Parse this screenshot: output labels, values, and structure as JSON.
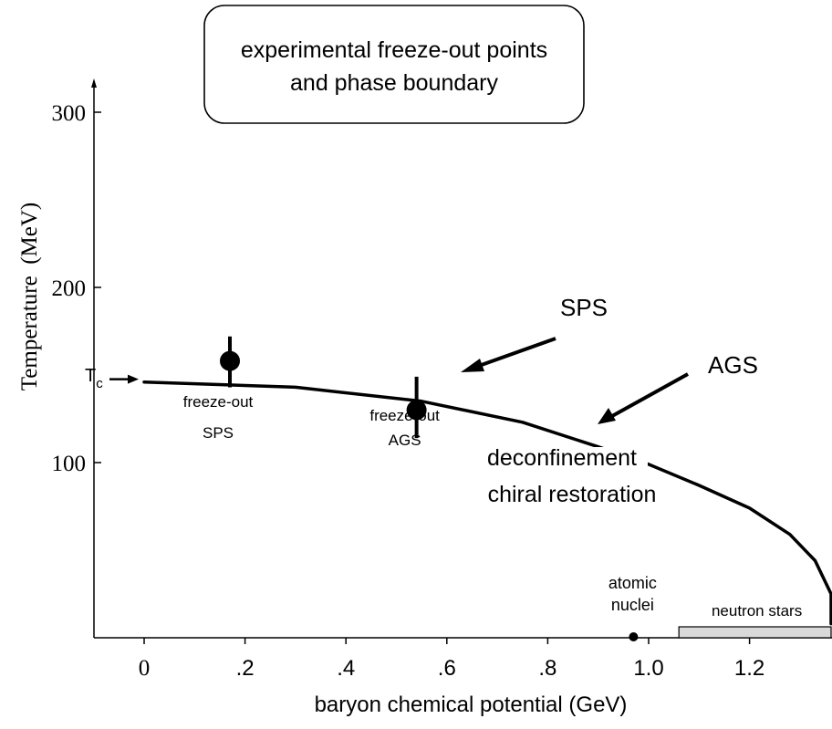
{
  "chart_data": {
    "type": "line",
    "title": "experimental freeze-out points\nand phase boundary",
    "xlabel": "baryon chemical potential (GeV)",
    "ylabel": "Temperature  (MeV)",
    "xlim": [
      -0.1,
      1.4
    ],
    "ylim": [
      0,
      300
    ],
    "x_ticks": [
      {
        "value": 0,
        "label": "0"
      },
      {
        "value": 0.2,
        "label": ".2"
      },
      {
        "value": 0.4,
        "label": ".4"
      },
      {
        "value": 0.6,
        "label": ".6"
      },
      {
        "value": 0.8,
        "label": ".8"
      },
      {
        "value": 1.0,
        "label": "1.0"
      },
      {
        "value": 1.2,
        "label": "1.2"
      }
    ],
    "y_ticks": [
      {
        "value": 100,
        "label": "100"
      },
      {
        "value": 200,
        "label": "200"
      },
      {
        "value": 300,
        "label": "300"
      }
    ],
    "grid": false,
    "phase_boundary": {
      "x": [
        0,
        0.3,
        0.55,
        0.75,
        0.9,
        1.0,
        1.1,
        1.2,
        1.28,
        1.33,
        1.37,
        1.4
      ],
      "y": [
        146,
        143,
        135,
        123,
        109,
        99,
        87,
        74,
        59,
        44,
        25,
        8
      ]
    },
    "freeze_out_points": [
      {
        "x": 0.17,
        "y": 158,
        "y_low": 143,
        "y_high": 172,
        "label_line1": "freeze-out",
        "label_line2": "SPS"
      },
      {
        "x": 0.54,
        "y": 130,
        "y_low": 114,
        "y_high": 149,
        "label_line1": "freeze-out",
        "label_line2": "AGS"
      }
    ],
    "annotations": {
      "tc": {
        "main": "T",
        "sub": "c",
        "y": 146
      },
      "sps_arrow_label": "SPS",
      "ags_arrow_label": "AGS",
      "region_line1": "deconfinement",
      "region_line2": "chiral restoration",
      "nuclei_line1": "atomic",
      "nuclei_line2": "nuclei",
      "nuclei_x": 0.97,
      "neutron_stars_label": "neutron stars",
      "neutron_stars_range": [
        1.06,
        1.4
      ]
    },
    "colors": {
      "line": "#000000",
      "neutron_star_fill": "#d9d9d9"
    }
  }
}
